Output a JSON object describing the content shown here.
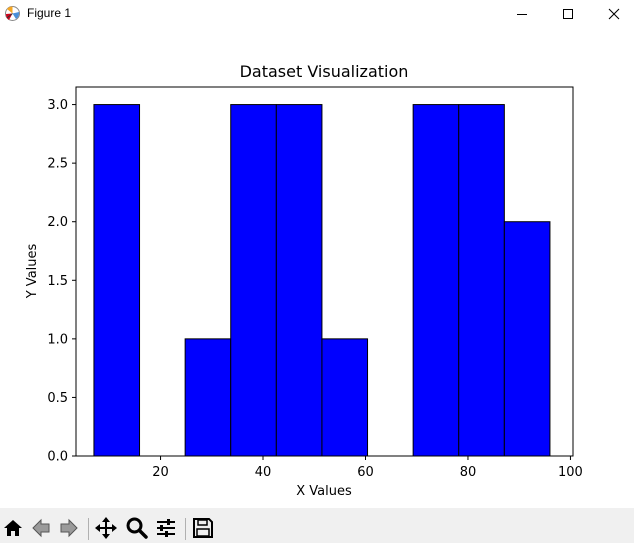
{
  "window": {
    "title": "Figure 1"
  },
  "toolbar": {
    "buttons": [
      {
        "name": "home",
        "icon": "home-icon"
      },
      {
        "name": "back",
        "icon": "back-arrow-icon"
      },
      {
        "name": "forward",
        "icon": "forward-arrow-icon"
      },
      {
        "name": "pan",
        "icon": "move-icon"
      },
      {
        "name": "zoom",
        "icon": "magnifier-icon"
      },
      {
        "name": "configure-subplots",
        "icon": "sliders-icon"
      },
      {
        "name": "save",
        "icon": "floppy-disk-icon"
      }
    ]
  },
  "chart_data": {
    "type": "bar",
    "title": "Dataset Visualization",
    "xlabel": "X Values",
    "ylabel": "Y Values",
    "xlim": [
      3.5,
      100.5
    ],
    "ylim": [
      0,
      3.15
    ],
    "xticks": [
      20,
      40,
      60,
      80,
      100
    ],
    "yticks": [
      "0.0",
      "0.5",
      "1.0",
      "1.5",
      "2.0",
      "2.5",
      "3.0"
    ],
    "bin_edges": [
      7,
      15.9,
      24.8,
      33.7,
      42.6,
      51.5,
      60.4,
      69.3,
      78.2,
      87.1,
      96
    ],
    "values": [
      3,
      0,
      1,
      3,
      3,
      1,
      0,
      3,
      3,
      2
    ],
    "bar_color": "#0000ff",
    "edge_color": "#000000",
    "grid": false
  }
}
